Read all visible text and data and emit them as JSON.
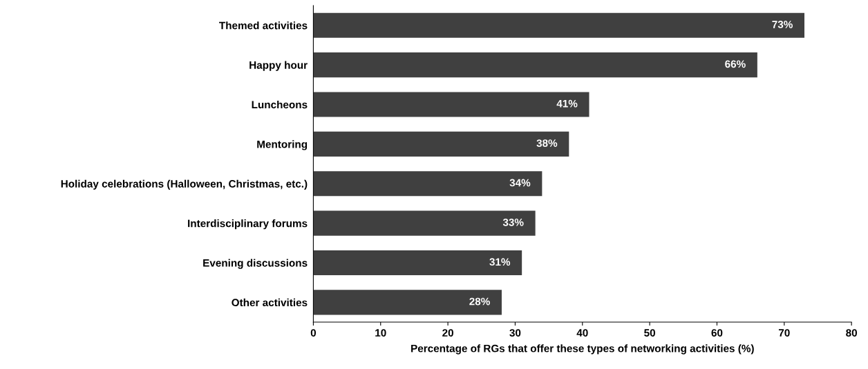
{
  "chart_data": {
    "type": "bar",
    "orientation": "horizontal",
    "xlabel": "Percentage of RGs that offer these types of networking activities (%)",
    "categories": [
      "Themed activities",
      "Happy hour",
      "Luncheons",
      "Mentoring",
      "Holiday celebrations (Halloween, Christmas, etc.)",
      "Interdisciplinary forums",
      "Evening discussions",
      "Other activities"
    ],
    "values": [
      73,
      66,
      41,
      38,
      34,
      33,
      31,
      28
    ],
    "value_labels": [
      "73%",
      "66%",
      "41%",
      "38%",
      "34%",
      "33%",
      "31%",
      "28%"
    ],
    "color": "#404040",
    "xlim": [
      0,
      80
    ],
    "xticks": [
      0,
      10,
      20,
      30,
      40,
      50,
      60,
      70,
      80
    ],
    "grid": false,
    "legend": false
  }
}
